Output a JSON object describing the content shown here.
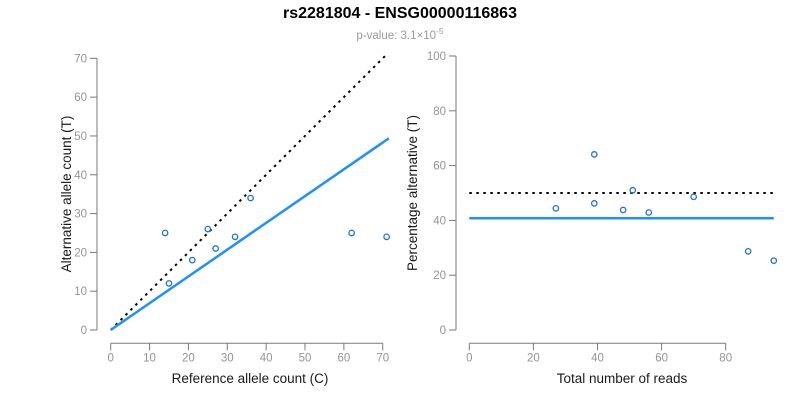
{
  "header": {
    "title": "rs2281804 - ENSG00000116863",
    "subtitle_prefix": "p-value: 3.1×10",
    "subtitle_exponent": "-5"
  },
  "colors": {
    "regression_line": "#1E90FF",
    "point_stroke": "#1874CD",
    "identity_line": "#000000",
    "axis_line": "#7a7a7a",
    "tick_label": "#949494",
    "axis_title": "#1a1a1a",
    "title": "#000000",
    "subtitle": "#9a9a9a",
    "background": "#ffffff"
  },
  "chart_data": [
    {
      "type": "scatter",
      "name": "allele-counts",
      "xlabel": "Reference allele count (C)",
      "ylabel": "Alternative allele count (T)",
      "xlim": [
        0,
        71.5
      ],
      "ylim": [
        0,
        71.5
      ],
      "xticks": [
        0,
        10,
        20,
        30,
        40,
        50,
        60,
        70
      ],
      "yticks": [
        0,
        10,
        20,
        30,
        40,
        50,
        60,
        70
      ],
      "grid": false,
      "points": [
        [
          14,
          25
        ],
        [
          15,
          12
        ],
        [
          21,
          18
        ],
        [
          25,
          26
        ],
        [
          27,
          21
        ],
        [
          32,
          24
        ],
        [
          36,
          34
        ],
        [
          62,
          25
        ],
        [
          71,
          24
        ]
      ],
      "lines": [
        {
          "label": "identity y=x",
          "style": "dotted",
          "color_key": "identity_line",
          "x1": 0,
          "y1": 0,
          "x2": 71.2,
          "y2": 71.2
        },
        {
          "label": "regression slope 0.69",
          "style": "solid",
          "color_key": "regression_line",
          "x1": 0,
          "y1": 0,
          "x2": 71.6,
          "y2": 49.4
        }
      ]
    },
    {
      "type": "scatter",
      "name": "percentage-alternative",
      "xlabel": "Total number of reads",
      "ylabel": "Percentage alternative (T)",
      "xlim": [
        0,
        98.8
      ],
      "ylim": [
        0,
        100
      ],
      "xticks": [
        0,
        20,
        40,
        60,
        80
      ],
      "yticks": [
        0,
        20,
        40,
        60,
        80,
        100
      ],
      "grid": false,
      "points": [
        [
          39,
          64.1
        ],
        [
          27,
          44.4
        ],
        [
          39,
          46.2
        ],
        [
          51,
          51.0
        ],
        [
          48,
          43.8
        ],
        [
          56,
          42.9
        ],
        [
          70,
          48.6
        ],
        [
          87,
          28.7
        ],
        [
          95,
          25.3
        ]
      ],
      "lines": [
        {
          "label": "expected 50 percent",
          "style": "dotted",
          "color_key": "identity_line",
          "x1": 0,
          "y1": 50,
          "x2": 95,
          "y2": 50
        },
        {
          "label": "overall mean 40.8 percent",
          "style": "solid",
          "color_key": "regression_line",
          "x1": 0,
          "y1": 40.8,
          "x2": 95,
          "y2": 40.8
        }
      ]
    }
  ]
}
